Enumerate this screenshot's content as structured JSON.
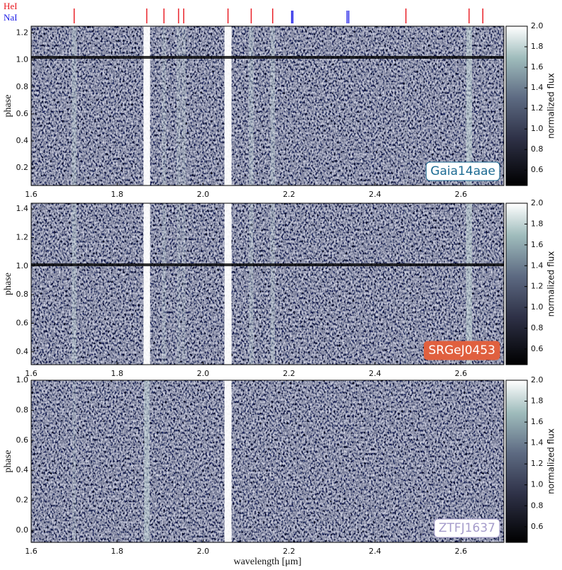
{
  "chart_data": [
    {
      "type": "heatmap",
      "annotation": "Gaia14aae",
      "annotation_color": "#1d6b93",
      "ylabel": "phase",
      "colorbar_label": "normalized flux",
      "xlim": [
        1.6,
        2.7
      ],
      "xticks": [
        1.6,
        1.8,
        {
          "value": 2,
          "label": "2.0"
        },
        2.2,
        2.4,
        2.6
      ],
      "ylim": [
        0.07,
        1.25
      ],
      "yticks": [
        0.2,
        0.4,
        0.6,
        0.8,
        {
          "value": 1,
          "label": "1.0"
        },
        1.2
      ],
      "clim": [
        0.45,
        2.0
      ],
      "cticks": [
        0.6,
        0.8,
        {
          "value": 1,
          "label": "1.0"
        },
        1.2,
        1.4,
        1.6,
        1.8,
        {
          "value": 2,
          "label": "2.0"
        }
      ],
      "line_markers": [
        {
          "name": "HeI",
          "color": "#e8141c",
          "values": [
            1.7,
            1.869,
            1.909,
            1.943,
            1.955,
            2.058,
            2.112,
            2.162,
            2.472,
            2.619,
            2.651
          ]
        },
        {
          "name": "NaI",
          "color": "#1a1ae6",
          "values": [
            2.206,
            2.209,
            2.335,
            2.339
          ]
        }
      ]
    },
    {
      "type": "heatmap",
      "annotation": "SRGeJ0453",
      "annotation_color": "#e0603f",
      "ylabel": "phase",
      "colorbar_label": "normalized flux",
      "xlim": [
        1.6,
        2.7
      ],
      "xticks": [
        1.6,
        1.8,
        {
          "value": 2,
          "label": "2.0"
        },
        2.2,
        2.4,
        2.6
      ],
      "ylim": [
        0.31,
        1.44
      ],
      "yticks": [
        0.4,
        0.6,
        0.8,
        {
          "value": 1,
          "label": "1.0"
        },
        1.2,
        1.4
      ],
      "clim": [
        0.45,
        2.0
      ],
      "cticks": [
        0.6,
        0.8,
        {
          "value": 1,
          "label": "1.0"
        },
        1.2,
        1.4,
        1.6,
        1.8,
        {
          "value": 2,
          "label": "2.0"
        }
      ]
    },
    {
      "type": "heatmap",
      "annotation": "ZTFJ1637",
      "annotation_color": "#a59ccb",
      "ylabel": "phase",
      "colorbar_label": "normalized flux",
      "xlabel": "wavelength [μm]",
      "xlim": [
        1.6,
        2.7
      ],
      "xticks": [
        1.6,
        1.8,
        {
          "value": 2,
          "label": "2.0"
        },
        2.2,
        2.4,
        2.6
      ],
      "ylim": [
        -0.08,
        1.0
      ],
      "yticks": [
        {
          "value": 0,
          "label": "0.0"
        },
        0.2,
        0.4,
        0.6,
        0.8,
        {
          "value": 1,
          "label": "1.0"
        }
      ],
      "clim": [
        0.45,
        2.0
      ],
      "cticks": [
        0.6,
        0.8,
        {
          "value": 1,
          "label": "1.0"
        },
        1.2,
        1.4,
        1.6,
        1.8,
        {
          "value": 2,
          "label": "2.0"
        }
      ]
    }
  ]
}
